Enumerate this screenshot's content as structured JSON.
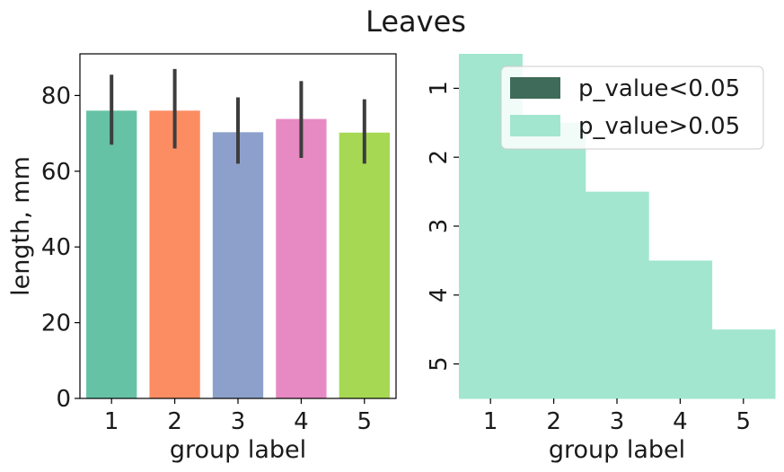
{
  "figure": {
    "title": "Leaves"
  },
  "chart_data": [
    {
      "type": "bar",
      "categories": [
        "1",
        "2",
        "3",
        "4",
        "5"
      ],
      "values": [
        76,
        76,
        70.3,
        73.8,
        70.2
      ],
      "error_low": [
        67,
        66,
        62,
        63.5,
        62
      ],
      "error_high": [
        85.5,
        87,
        79.5,
        83.8,
        79
      ],
      "colors": [
        "#66c2a5",
        "#fc8d62",
        "#8da0cb",
        "#e78ac3",
        "#a6d854"
      ],
      "xlabel": "group label",
      "ylabel": "length, mm",
      "ylim": [
        0,
        91
      ],
      "yticks": [
        0,
        20,
        40,
        60,
        80
      ],
      "grid": false
    },
    {
      "type": "heatmap",
      "categories": [
        "1",
        "2",
        "3",
        "4",
        "5"
      ],
      "rows": [
        "1",
        "2",
        "3",
        "4",
        "5"
      ],
      "xlabel": "group label",
      "ylabel": "",
      "cells": [
        [
          0,
          1,
          1,
          1,
          1
        ],
        [
          0,
          0,
          1,
          1,
          1
        ],
        [
          0,
          0,
          0,
          1,
          1
        ],
        [
          0,
          0,
          0,
          0,
          1
        ],
        [
          0,
          0,
          0,
          0,
          0
        ]
      ],
      "cell_color": "#a2e6d0",
      "legend": {
        "placement": "top-right",
        "entries": [
          {
            "label": "p_value<0.05",
            "color": "#3e6b5a"
          },
          {
            "label": "p_value>0.05",
            "color": "#a2e6d0"
          }
        ]
      }
    }
  ]
}
